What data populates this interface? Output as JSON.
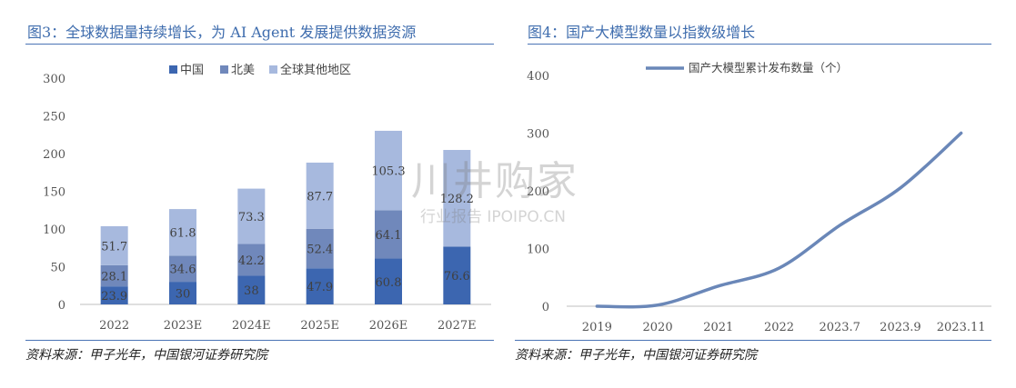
{
  "left_panel": {
    "title": "图3：全球数据量持续增长，为 AI Agent 发展提供数据资源",
    "source": "资料来源：甲子光年，中国银河证券研究院"
  },
  "right_panel": {
    "title": "图4：国产大模型数量以指数级增长",
    "source": "资料来源：甲子光年，中国银河证券研究院"
  },
  "watermark": {
    "main": "川井购家",
    "sub": "行业报告 IPOIPO.CN"
  },
  "chart_data": [
    {
      "type": "bar",
      "stacked": true,
      "categories": [
        "2022",
        "2023E",
        "2024E",
        "2025E",
        "2026E",
        "2027E"
      ],
      "series": [
        {
          "name": "中国",
          "values": [
            23.9,
            30,
            38,
            47.9,
            60.8,
            76.6
          ],
          "labels": [
            "23.9",
            "30",
            "38",
            "47.9",
            "60.8",
            "76.6"
          ],
          "color": "#3c66b0"
        },
        {
          "name": "北美",
          "values": [
            28.1,
            34.6,
            42.2,
            52.4,
            64.1,
            null
          ],
          "labels": [
            "28.1",
            "34.6",
            "42.2",
            "52.4",
            "64.1",
            ""
          ],
          "color": "#7088bb"
        },
        {
          "name": "全球其他地区",
          "values": [
            51.7,
            61.8,
            73.3,
            87.7,
            105.3,
            128.2
          ],
          "labels": [
            "51.7",
            "61.8",
            "73.3",
            "87.7",
            "105.3",
            "128.2"
          ],
          "color": "#a7b9de"
        }
      ],
      "yticks": [
        "0",
        "50",
        "100",
        "150",
        "200",
        "250",
        "300"
      ],
      "ylim": [
        0,
        300
      ],
      "legend": "top-center",
      "grid": false
    },
    {
      "type": "line",
      "categories": [
        "2019",
        "2020",
        "2021",
        "2022",
        "2023.7",
        "2023.9",
        "2023.11"
      ],
      "series": [
        {
          "name": "国产大模型累计发布数量（个）",
          "values": [
            0,
            2,
            35,
            66,
            140,
            205,
            300
          ],
          "color": "#6a87b8"
        }
      ],
      "yticks": [
        "0",
        "100",
        "200",
        "300",
        "400"
      ],
      "ylim": [
        0,
        400
      ],
      "legend": "top-left",
      "grid": false
    }
  ]
}
